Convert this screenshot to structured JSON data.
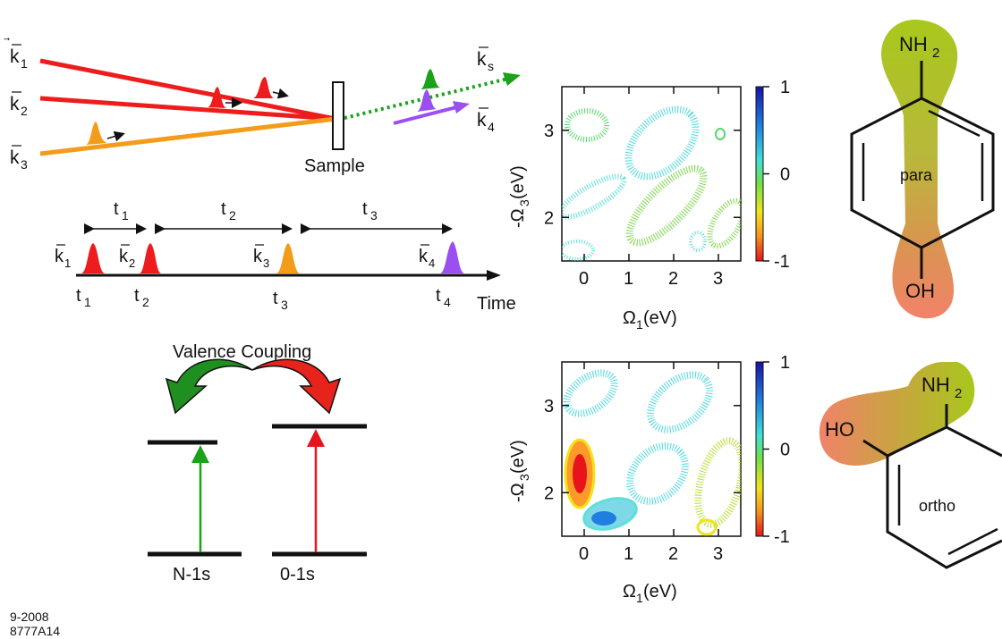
{
  "figure": {
    "beams": {
      "k1": "k",
      "k1_sub": "1",
      "k2": "k",
      "k2_sub": "2",
      "k3": "k",
      "k3_sub": "3",
      "ks": "k",
      "ks_sub": "s",
      "k4": "k",
      "k4_sub": "4",
      "sample_label": "Sample"
    },
    "timeline": {
      "intervals": [
        {
          "label": "t",
          "sub": "1"
        },
        {
          "label": "t",
          "sub": "2"
        },
        {
          "label": "t",
          "sub": "3"
        }
      ],
      "pulse_labels": [
        {
          "label": "k",
          "sub": "1"
        },
        {
          "label": "k",
          "sub": "2"
        },
        {
          "label": "k",
          "sub": "3"
        },
        {
          "label": "k",
          "sub": "4"
        }
      ],
      "time_points": [
        {
          "label": "t",
          "sub": "1"
        },
        {
          "label": "t",
          "sub": "2"
        },
        {
          "label": "t",
          "sub": "3"
        },
        {
          "label": "t",
          "sub": "4"
        }
      ],
      "axis_label": "Time"
    },
    "levels": {
      "title": "Valence Coupling",
      "left_label": "N-1s",
      "right_label": "0-1s"
    },
    "colors": {
      "k1": "#ee1c1c",
      "k2": "#ee1c1c",
      "k3": "#f39c1a",
      "ks": "#1a9a1a",
      "k4": "#9b4ff0",
      "left_arrow": "#1f8f1f",
      "right_arrow": "#e8231c"
    },
    "plots": {
      "x_label_main": "Ω",
      "x_label_sub": "1",
      "x_label_unit": " (eV)",
      "y_label_main": "-Ω",
      "y_label_sub": "3",
      "y_label_unit": " (eV)",
      "x_ticks": [
        "0",
        "1",
        "2",
        "3"
      ],
      "y_ticks": [
        "3",
        "2"
      ],
      "colorbar_ticks": [
        "1",
        "0",
        "-1"
      ]
    },
    "molecules": {
      "para": {
        "top_group": "NH",
        "top_sub": "2",
        "bottom_group": "OH",
        "name": "para"
      },
      "ortho": {
        "top_group": "NH",
        "top_sub": "2",
        "side_group": "HO",
        "name": "ortho"
      }
    },
    "footer": {
      "line1": "9-2008",
      "line2": "8777A14"
    }
  }
}
